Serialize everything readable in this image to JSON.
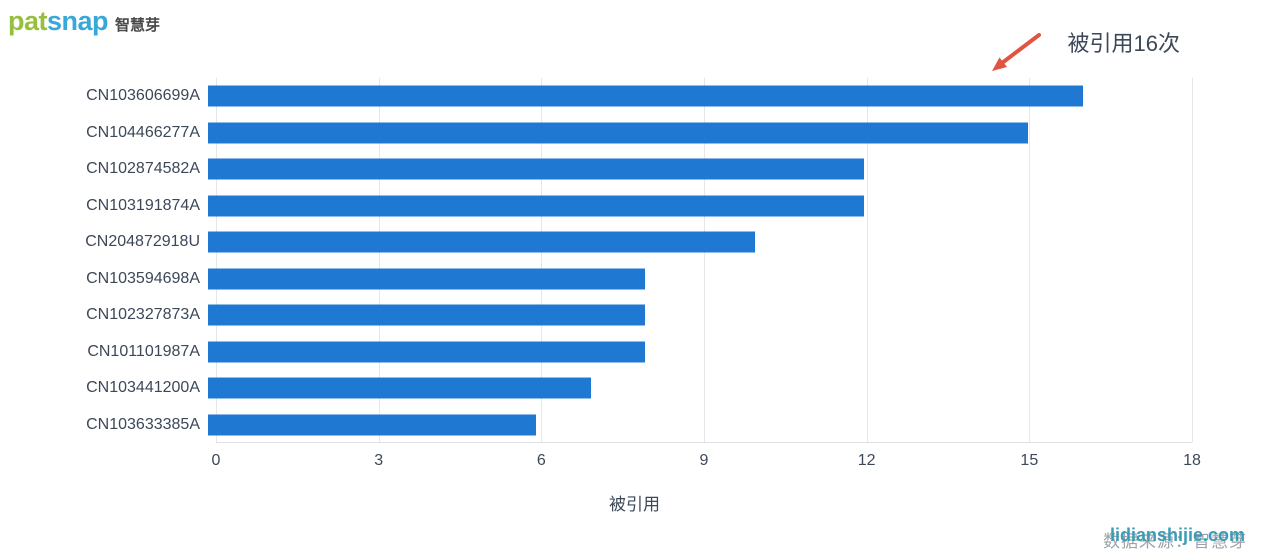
{
  "logo": {
    "brand_part1": "pat",
    "brand_part2": "snap",
    "brand_cn": "智慧芽"
  },
  "annotation": {
    "label": "被引用16次"
  },
  "chart_data": {
    "type": "bar",
    "orientation": "horizontal",
    "title": "",
    "categories": [
      "CN103606699A",
      "CN104466277A",
      "CN102874582A",
      "CN103191874A",
      "CN204872918U",
      "CN103594698A",
      "CN102327873A",
      "CN101101987A",
      "CN103441200A",
      "CN103633385A"
    ],
    "values": [
      16,
      15,
      12,
      12,
      10,
      8,
      8,
      8,
      7,
      6
    ],
    "xlabel": "被引用",
    "ylabel": "",
    "x_ticks": [
      0,
      3,
      6,
      9,
      12,
      15,
      18
    ],
    "xlim": [
      0,
      18
    ],
    "grid": true,
    "legend": false,
    "annotation_text": "被引用16次"
  },
  "watermark": {
    "site": "lidianshijie.com",
    "source": "数据来源：智慧芽"
  },
  "colors": {
    "bar": "#1F78D2",
    "arrow": "#E05440",
    "logo_green": "#96BF3E",
    "logo_blue": "#38A8D8",
    "text_dark": "#3C4858",
    "gridline": "#E4E7EA",
    "watermark_site": "#3A9DB5",
    "watermark_source": "#9AA3A9"
  }
}
